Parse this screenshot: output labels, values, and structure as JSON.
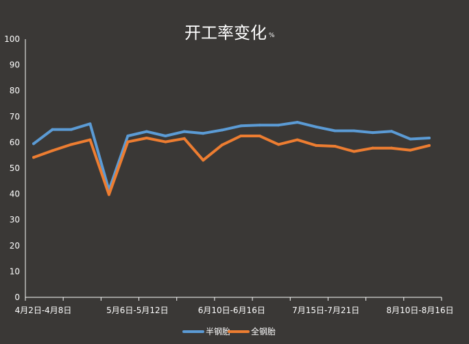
{
  "chart_data": {
    "type": "line",
    "title": "开工率变化",
    "title_unit": "%",
    "xlabel": "",
    "ylabel": "",
    "ylim": [
      0,
      100
    ],
    "y_ticks": [
      0,
      10,
      20,
      30,
      40,
      50,
      60,
      70,
      80,
      90,
      100
    ],
    "grid": false,
    "legend_position": "bottom",
    "x_tick_labels": [
      {
        "index": 0,
        "label": "4月2日-4月8日"
      },
      {
        "index": 5,
        "label": "5月6日-5月12日"
      },
      {
        "index": 10,
        "label": "6月10日-6月16日"
      },
      {
        "index": 15,
        "label": "7月15日-7月21日"
      },
      {
        "index": 20,
        "label": "8月10日-8月16日"
      }
    ],
    "series": [
      {
        "name": "半钢胎",
        "color": "#5b9bd5",
        "values": [
          59.5,
          65,
          65,
          67.2,
          41.5,
          62.5,
          64.2,
          62.5,
          64.2,
          63.5,
          64.8,
          66.4,
          66.7,
          66.7,
          67.8,
          66,
          64.5,
          64.5,
          63.8,
          64.3,
          61.3,
          61.7
        ]
      },
      {
        "name": "全钢胎",
        "color": "#ed7d31",
        "values": [
          54.2,
          56.8,
          59.2,
          61,
          39.8,
          60.2,
          61.7,
          60.2,
          61.5,
          53.1,
          59,
          62.5,
          62.5,
          59.2,
          61,
          58.8,
          58.5,
          56.5,
          57.8,
          57.8,
          57,
          58.8
        ]
      }
    ]
  }
}
